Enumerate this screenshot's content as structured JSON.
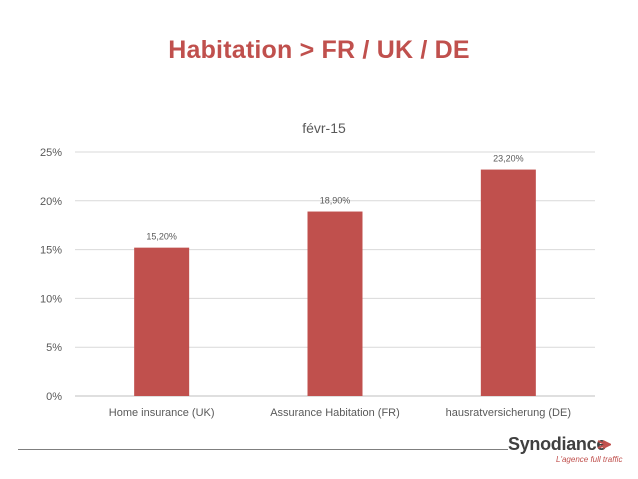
{
  "slide": {
    "title": "Habitation > FR / UK / DE"
  },
  "chart_data": {
    "type": "bar",
    "title": "févr-15",
    "xlabel": "",
    "ylabel": "",
    "categories": [
      "Home insurance (UK)",
      "Assurance Habitation (FR)",
      "hausratversicherung (DE)"
    ],
    "values": [
      15.2,
      18.9,
      23.2
    ],
    "data_labels": [
      "15,20%",
      "18,90%",
      "23,20%"
    ],
    "ylim": [
      0,
      25
    ],
    "yticks": [
      0,
      5,
      10,
      15,
      20,
      25
    ],
    "ytick_labels": [
      "0%",
      "5%",
      "10%",
      "15%",
      "20%",
      "25%"
    ],
    "grid": true,
    "legend": "none",
    "bar_color": "#c0504d"
  },
  "footer": {
    "logo_name": "Synodiance",
    "logo_tagline": "L'agence full traffic"
  },
  "colors": {
    "accent": "#c0504d",
    "text": "#595959",
    "grid": "#d9d9d9"
  }
}
